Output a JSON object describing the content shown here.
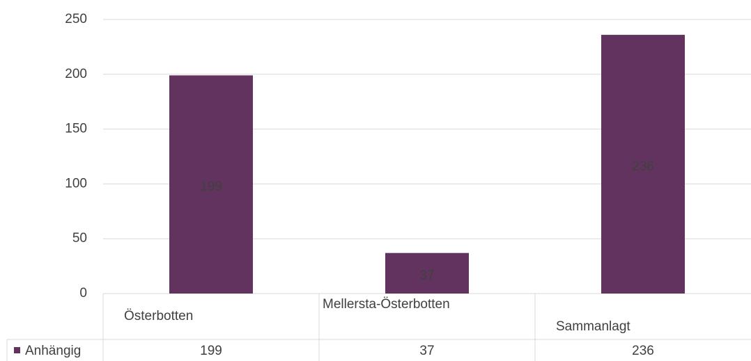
{
  "chart_data": {
    "type": "bar",
    "categories": [
      "Österbotten",
      "Mellersta-Österbotten",
      "Sammanlagt"
    ],
    "series": [
      {
        "name": "Anhängig",
        "color": "#62335f",
        "values": [
          199,
          37,
          236
        ]
      }
    ],
    "ylim": [
      0,
      250
    ],
    "yticks": [
      0,
      50,
      100,
      150,
      200,
      250
    ],
    "grid": true,
    "legend": "table",
    "data_table": true
  }
}
